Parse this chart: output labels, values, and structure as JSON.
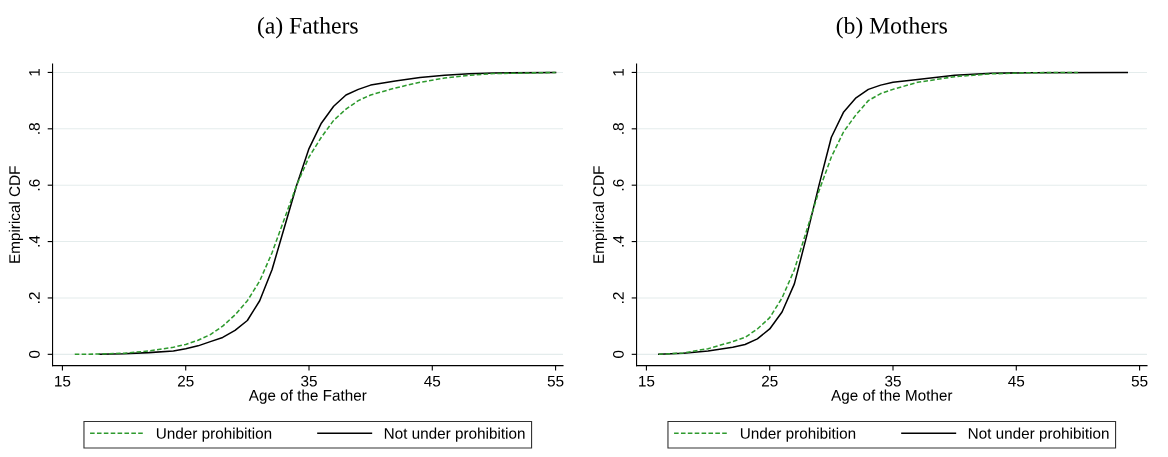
{
  "chart_data": [
    {
      "type": "line",
      "title": "(a) Fathers",
      "xlabel": "Age of the Father",
      "ylabel": "Empirical CDF",
      "xlim": [
        14.2,
        55.6
      ],
      "xticks": [
        15,
        25,
        35,
        45,
        55
      ],
      "ylim": [
        -0.04,
        1.03
      ],
      "yticks": [
        {
          "value": 0,
          "label": "0"
        },
        {
          "value": 0.2,
          "label": ".2"
        },
        {
          "value": 0.4,
          "label": ".4"
        },
        {
          "value": 0.6,
          "label": ".6"
        },
        {
          "value": 0.8,
          "label": ".8"
        },
        {
          "value": 1,
          "label": "1"
        }
      ],
      "grid": "y",
      "legend": "bottom",
      "marker": "none",
      "series": [
        {
          "name": "Under prohibition",
          "color": "#2e9a2e",
          "line_style": "dashed",
          "x": [
            16,
            18,
            20,
            22,
            24,
            25,
            26,
            27,
            28,
            29,
            30,
            31,
            32,
            33,
            34,
            35,
            36,
            37,
            38,
            39,
            40,
            42,
            44,
            46,
            48,
            50,
            55
          ],
          "values": [
            0,
            0.001,
            0.004,
            0.012,
            0.025,
            0.035,
            0.05,
            0.07,
            0.1,
            0.14,
            0.19,
            0.26,
            0.36,
            0.48,
            0.6,
            0.7,
            0.77,
            0.83,
            0.87,
            0.9,
            0.92,
            0.945,
            0.965,
            0.98,
            0.99,
            0.996,
            1
          ]
        },
        {
          "name": "Not under prohibition",
          "color": "#000000",
          "line_style": "solid",
          "x": [
            18,
            20,
            22,
            24,
            25,
            26,
            27,
            28,
            29,
            30,
            31,
            32,
            33,
            34,
            35,
            36,
            37,
            38,
            39,
            40,
            42,
            44,
            46,
            48,
            50,
            55
          ],
          "values": [
            0,
            0.002,
            0.006,
            0.012,
            0.02,
            0.03,
            0.045,
            0.06,
            0.085,
            0.12,
            0.19,
            0.3,
            0.45,
            0.6,
            0.73,
            0.82,
            0.88,
            0.92,
            0.94,
            0.955,
            0.97,
            0.982,
            0.99,
            0.995,
            0.998,
            1
          ]
        }
      ]
    },
    {
      "type": "line",
      "title": "(b) Mothers",
      "xlabel": "Age of the Mother",
      "ylabel": "Empirical CDF",
      "xlim": [
        14.2,
        55.6
      ],
      "xticks": [
        15,
        25,
        35,
        45,
        55
      ],
      "ylim": [
        -0.04,
        1.03
      ],
      "yticks": [
        {
          "value": 0,
          "label": "0"
        },
        {
          "value": 0.2,
          "label": ".2"
        },
        {
          "value": 0.4,
          "label": ".4"
        },
        {
          "value": 0.6,
          "label": ".6"
        },
        {
          "value": 0.8,
          "label": ".8"
        },
        {
          "value": 1,
          "label": "1"
        }
      ],
      "grid": "y",
      "legend": "bottom",
      "marker": "none",
      "series": [
        {
          "name": "Under prohibition",
          "color": "#2e9a2e",
          "line_style": "dashed",
          "x": [
            16,
            18,
            20,
            22,
            23,
            24,
            25,
            26,
            27,
            28,
            29,
            30,
            31,
            32,
            33,
            34,
            35,
            37,
            40,
            43,
            46,
            50
          ],
          "values": [
            0,
            0.005,
            0.02,
            0.045,
            0.06,
            0.09,
            0.13,
            0.2,
            0.3,
            0.44,
            0.58,
            0.7,
            0.79,
            0.85,
            0.9,
            0.925,
            0.94,
            0.965,
            0.985,
            0.995,
            0.999,
            1
          ]
        },
        {
          "name": "Not under prohibition",
          "color": "#000000",
          "line_style": "solid",
          "x": [
            16,
            18,
            20,
            22,
            23,
            24,
            25,
            26,
            27,
            28,
            29,
            30,
            31,
            32,
            33,
            34,
            35,
            37,
            40,
            43,
            46,
            54
          ],
          "values": [
            0,
            0.004,
            0.012,
            0.025,
            0.035,
            0.055,
            0.09,
            0.15,
            0.25,
            0.42,
            0.6,
            0.77,
            0.86,
            0.91,
            0.94,
            0.955,
            0.965,
            0.975,
            0.99,
            0.997,
            0.999,
            1
          ]
        }
      ]
    }
  ]
}
